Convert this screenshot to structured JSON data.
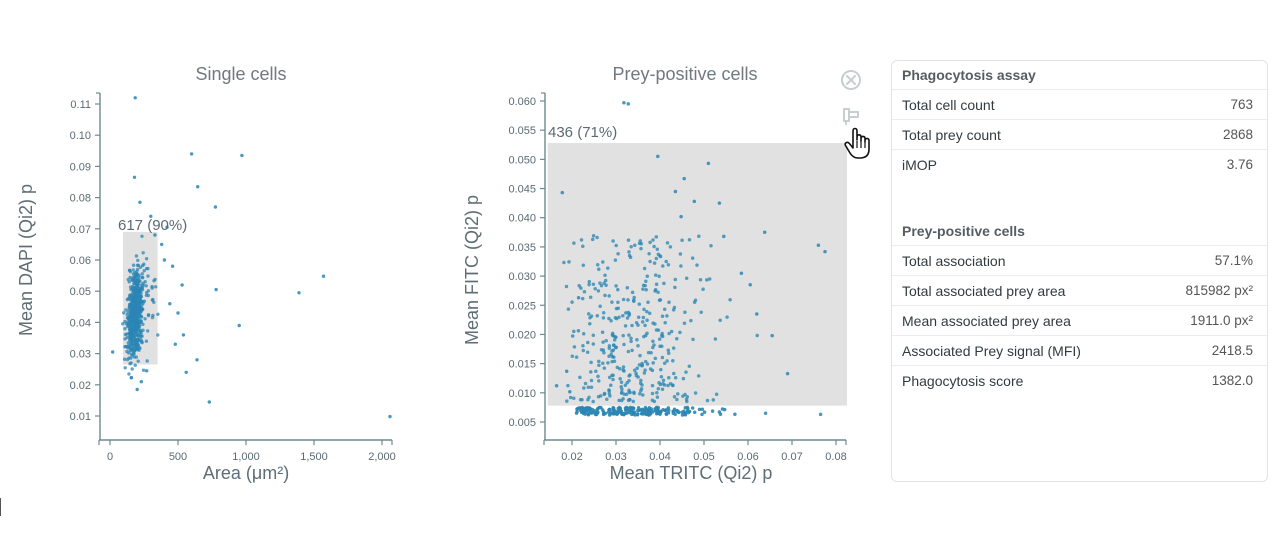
{
  "colors": {
    "point": "#2b86b4",
    "gate": "#d6d6d6",
    "axis": "#6d8a8f"
  },
  "chart_data": [
    {
      "id": "single",
      "type": "scatter",
      "title": "Single cells",
      "xlabel": "Area (μm²)",
      "ylabel": "Mean DAPI (Qi2) p",
      "xlim": [
        -80,
        2300
      ],
      "ylim": [
        0.005,
        0.117
      ],
      "xticks": [
        0,
        500,
        1000,
        1500,
        2000
      ],
      "xtick_labels": [
        "0",
        "500",
        "1,000",
        "1,500",
        "2,000"
      ],
      "yticks": [
        0.01,
        0.02,
        0.03,
        0.04,
        0.05,
        0.06,
        0.07,
        0.08,
        0.09,
        0.1,
        0.11
      ],
      "ytick_labels": [
        "0.01",
        "0.02",
        "0.03",
        "0.04",
        "0.05",
        "0.06",
        "0.07",
        "0.08",
        "0.09",
        "0.10",
        "0.11"
      ],
      "gate": {
        "x": [
          95,
          350
        ],
        "y": [
          0.0265,
          0.069
        ],
        "label": "617 (90%)"
      },
      "cluster": {
        "n": 560,
        "seed": 7,
        "x_center": [
          155,
          215
        ],
        "x_jitter": 28,
        "y_center": 0.043,
        "y_spread": 0.012,
        "y_min": 0.022,
        "y_max": 0.069
      },
      "outliers": [
        [
          185,
          0.112
        ],
        [
          600,
          0.094
        ],
        [
          970,
          0.0935
        ],
        [
          180,
          0.0865
        ],
        [
          645,
          0.0835
        ],
        [
          775,
          0.077
        ],
        [
          220,
          0.0785
        ],
        [
          300,
          0.074
        ],
        [
          420,
          0.0705
        ],
        [
          380,
          0.065
        ],
        [
          460,
          0.058
        ],
        [
          530,
          0.052
        ],
        [
          780,
          0.0505
        ],
        [
          1390,
          0.0495
        ],
        [
          1570,
          0.0548
        ],
        [
          950,
          0.039
        ],
        [
          640,
          0.028
        ],
        [
          730,
          0.0145
        ],
        [
          200,
          0.0185
        ],
        [
          2240,
          0.0098
        ],
        [
          20,
          0.0305
        ],
        [
          500,
          0.043
        ],
        [
          540,
          0.036
        ],
        [
          440,
          0.046
        ],
        [
          400,
          0.06
        ],
        [
          480,
          0.033
        ],
        [
          230,
          0.021
        ],
        [
          560,
          0.024
        ],
        [
          330,
          0.068
        ],
        [
          270,
          0.0245
        ]
      ]
    },
    {
      "id": "prey",
      "type": "scatter",
      "title": "Prey-positive cells",
      "xlabel": "Mean TRITC (Qi2) p",
      "ylabel": "Mean FITC (Qi2) p",
      "xlim": [
        0.0135,
        0.0825
      ],
      "ylim": [
        0.0035,
        0.0615
      ],
      "xticks": [
        0.02,
        0.03,
        0.04,
        0.05,
        0.06,
        0.07,
        0.08
      ],
      "xtick_labels": [
        "0.02",
        "0.03",
        "0.04",
        "0.05",
        "0.06",
        "0.07",
        "0.08"
      ],
      "yticks": [
        0.005,
        0.01,
        0.015,
        0.02,
        0.025,
        0.03,
        0.035,
        0.04,
        0.045,
        0.05,
        0.055,
        0.06
      ],
      "ytick_labels": [
        "0.005",
        "0.010",
        "0.015",
        "0.020",
        "0.025",
        "0.030",
        "0.035",
        "0.040",
        "0.045",
        "0.050",
        "0.055",
        "0.060"
      ],
      "gate": {
        "x": [
          0.0145,
          0.0825
        ],
        "y": [
          0.0078,
          0.0528
        ],
        "label": "436 (71%)"
      },
      "cloud": {
        "n": 370,
        "seed": 21,
        "x_min": 0.018,
        "x_max": 0.066,
        "x_peak": 0.034,
        "y_min": 0.0085,
        "y_max": 0.037
      },
      "band": {
        "n": 220,
        "seed": 5,
        "x_min": 0.021,
        "x_max": 0.058,
        "y_min": 0.0062,
        "y_max": 0.0075
      },
      "outliers": [
        [
          0.0318,
          0.0597
        ],
        [
          0.0328,
          0.0595
        ],
        [
          0.0395,
          0.0505
        ],
        [
          0.051,
          0.0493
        ],
        [
          0.0455,
          0.0467
        ],
        [
          0.0435,
          0.0445
        ],
        [
          0.0178,
          0.0443
        ],
        [
          0.0478,
          0.0428
        ],
        [
          0.0535,
          0.0425
        ],
        [
          0.0448,
          0.0402
        ],
        [
          0.0638,
          0.0375
        ],
        [
          0.076,
          0.0353
        ],
        [
          0.0775,
          0.0342
        ],
        [
          0.069,
          0.0133
        ],
        [
          0.0765,
          0.0063
        ],
        [
          0.064,
          0.0065
        ],
        [
          0.0605,
          0.0285
        ],
        [
          0.062,
          0.0235
        ],
        [
          0.0655,
          0.0198
        ],
        [
          0.0585,
          0.0305
        ],
        [
          0.0165,
          0.0112
        ],
        [
          0.0195,
          0.0102
        ],
        [
          0.0188,
          0.0137
        ],
        [
          0.0215,
          0.0263
        ],
        [
          0.0545,
          0.0368
        ]
      ]
    }
  ],
  "summary": {
    "assay": {
      "title": "Phagocytosis assay",
      "rows": [
        {
          "label": "Total cell count",
          "value": "763"
        },
        {
          "label": "Total prey count",
          "value": "2868"
        },
        {
          "label": "iMOP",
          "value": "3.76"
        }
      ]
    },
    "prey": {
      "title": "Prey-positive cells",
      "rows": [
        {
          "label": "Total association",
          "value": "57.1%"
        },
        {
          "label": "Total associated prey area",
          "value": "815982 px²"
        },
        {
          "label": "Mean associated prey area",
          "value": "1911.0 px²"
        },
        {
          "label": "Associated Prey signal (MFI)",
          "value": "2418.5"
        },
        {
          "label": "Phagocytosis score",
          "value": "1382.0"
        }
      ]
    }
  }
}
